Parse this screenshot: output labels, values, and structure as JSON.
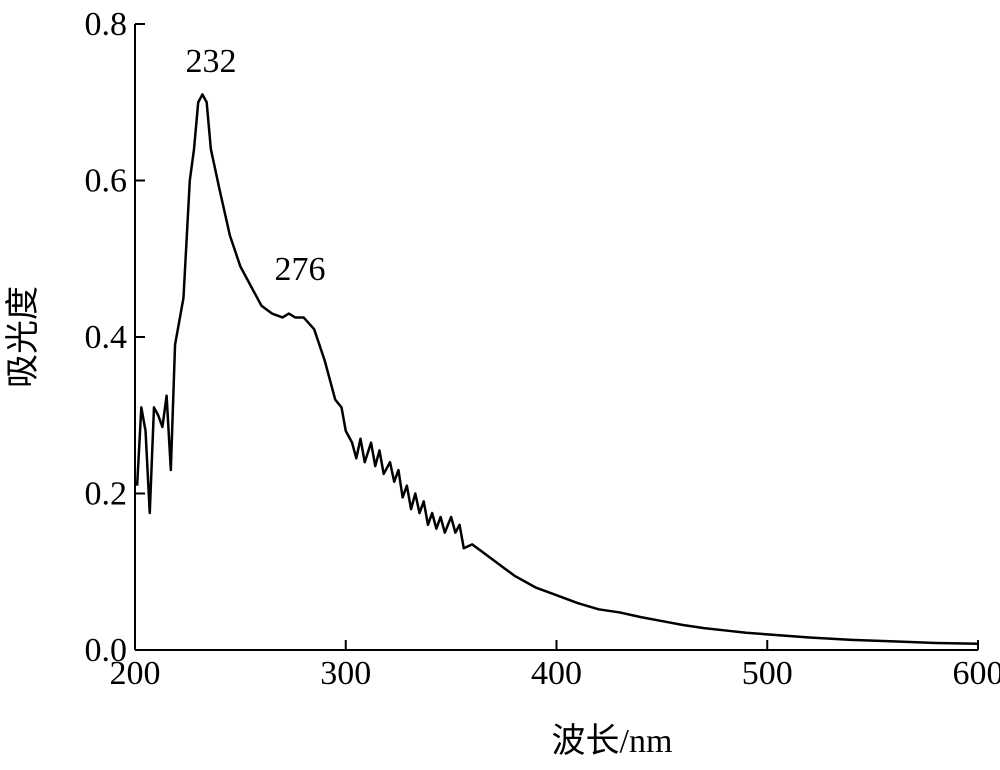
{
  "chart_data": {
    "type": "line",
    "x_label": "波长/nm",
    "y_label": "吸光度",
    "annotations": [
      "232",
      "276"
    ],
    "xlim": [
      200,
      600
    ],
    "xticks": [
      200,
      300,
      400,
      500,
      600
    ],
    "ylim": [
      0,
      0.8
    ],
    "yticks": [
      {
        "value": 0,
        "label": "0.0"
      },
      {
        "value": 0.2,
        "label": "0.2"
      },
      {
        "value": 0.4,
        "label": "0.4"
      },
      {
        "value": 0.6,
        "label": "0.6"
      },
      {
        "value": 0.8,
        "label": "0.8"
      }
    ],
    "x": [
      201,
      203,
      205,
      207,
      209,
      211,
      213,
      215,
      217,
      219,
      223,
      226,
      228,
      230,
      232,
      234,
      236,
      240,
      245,
      250,
      255,
      260,
      265,
      270,
      273,
      276,
      280,
      285,
      290,
      295,
      298,
      300,
      303,
      305,
      307,
      309,
      312,
      314,
      316,
      318,
      321,
      323,
      325,
      327,
      329,
      331,
      333,
      335,
      337,
      339,
      341,
      343,
      345,
      347,
      350,
      352,
      354,
      356,
      360,
      365,
      370,
      375,
      380,
      390,
      400,
      410,
      420,
      430,
      440,
      450,
      460,
      470,
      480,
      490,
      500,
      520,
      540,
      560,
      580,
      600
    ],
    "series": [
      {
        "color": "#000000",
        "values": [
          0.21,
          0.31,
          0.28,
          0.175,
          0.31,
          0.3,
          0.285,
          0.325,
          0.23,
          0.39,
          0.45,
          0.6,
          0.64,
          0.7,
          0.71,
          0.7,
          0.64,
          0.59,
          0.53,
          0.49,
          0.465,
          0.44,
          0.43,
          0.425,
          0.43,
          0.425,
          0.425,
          0.41,
          0.37,
          0.32,
          0.31,
          0.28,
          0.265,
          0.245,
          0.27,
          0.24,
          0.265,
          0.235,
          0.255,
          0.225,
          0.24,
          0.215,
          0.23,
          0.195,
          0.21,
          0.18,
          0.2,
          0.175,
          0.19,
          0.16,
          0.175,
          0.155,
          0.17,
          0.15,
          0.17,
          0.15,
          0.16,
          0.13,
          0.135,
          0.125,
          0.115,
          0.105,
          0.095,
          0.08,
          0.07,
          0.06,
          0.052,
          0.048,
          0.042,
          0.037,
          0.032,
          0.028,
          0.025,
          0.022,
          0.02,
          0.016,
          0.013,
          0.011,
          0.009,
          0.008
        ]
      }
    ]
  }
}
